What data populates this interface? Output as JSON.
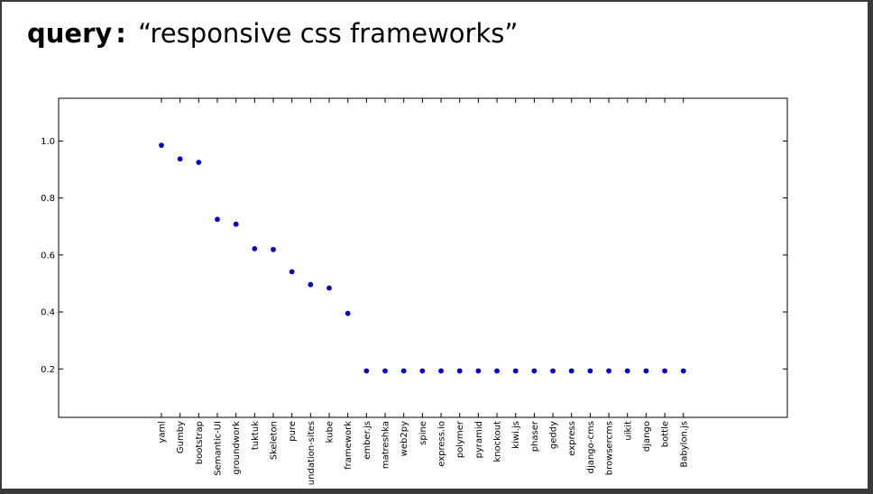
{
  "title": {
    "label": "query",
    "separator": ":",
    "query_text": "“responsive css frameworks”"
  },
  "chart_data": {
    "type": "scatter",
    "title": "",
    "xlabel": "",
    "ylabel": "",
    "ylim": [
      0.03,
      1.15
    ],
    "grid": false,
    "yticks": [
      0.2,
      0.4,
      0.6,
      0.8,
      1.0
    ],
    "ytick_labels": [
      "0.2",
      "0.4",
      "0.6",
      "0.8",
      "1.0"
    ],
    "categories": [
      "yaml",
      "Gumby",
      "bootstrap",
      "Semantic-UI",
      "groundwork",
      "tuktuk",
      "Skeleton",
      "pure",
      "undation-sites",
      "kube",
      "framework",
      "ember.js",
      "matreshka",
      "web2py",
      "spine",
      "express.io",
      "polymer",
      "pyramid",
      "knockout",
      "kiwi.js",
      "phaser",
      "geddy",
      "express",
      "django-cms",
      "browsercms",
      "uikit",
      "django",
      "bottle",
      "Babylon.js"
    ],
    "values": [
      0.985,
      0.937,
      0.925,
      0.725,
      0.708,
      0.622,
      0.619,
      0.541,
      0.496,
      0.484,
      0.395,
      0.193,
      0.193,
      0.193,
      0.193,
      0.193,
      0.193,
      0.193,
      0.193,
      0.193,
      0.193,
      0.193,
      0.193,
      0.193,
      0.193,
      0.193,
      0.193,
      0.193,
      0.193
    ],
    "colors": {
      "marker": "#0000cc",
      "axes": "#000000"
    }
  }
}
